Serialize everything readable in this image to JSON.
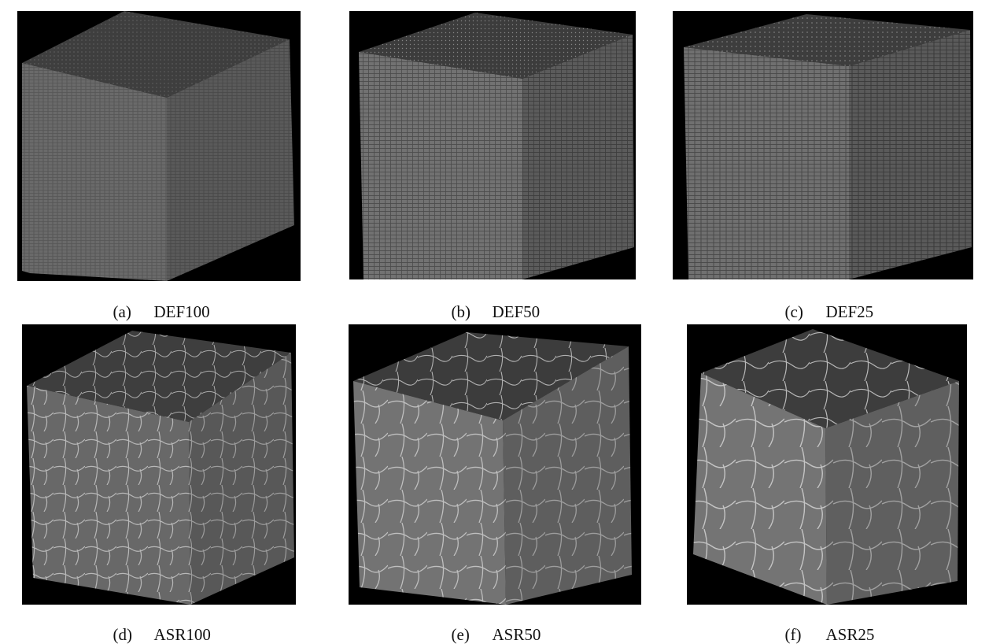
{
  "figure": {
    "panels": [
      {
        "id": "a",
        "label": "(a)",
        "name": "DEF100",
        "pattern": "fine"
      },
      {
        "id": "b",
        "label": "(b)",
        "name": "DEF50",
        "pattern": "fine"
      },
      {
        "id": "c",
        "label": "(c)",
        "name": "DEF25",
        "pattern": "fine"
      },
      {
        "id": "d",
        "label": "(d)",
        "name": "ASR100",
        "pattern": "cracked"
      },
      {
        "id": "e",
        "label": "(e)",
        "name": "ASR50",
        "pattern": "cracked"
      },
      {
        "id": "f",
        "label": "(f)",
        "name": "ASR25",
        "pattern": "cracked"
      }
    ],
    "colors": {
      "background": "#000000",
      "top_face": "#3f3f3f",
      "left_face": "#6b6b6b",
      "right_face": "#5a5a5a",
      "crack": "#c8c8c8"
    }
  }
}
